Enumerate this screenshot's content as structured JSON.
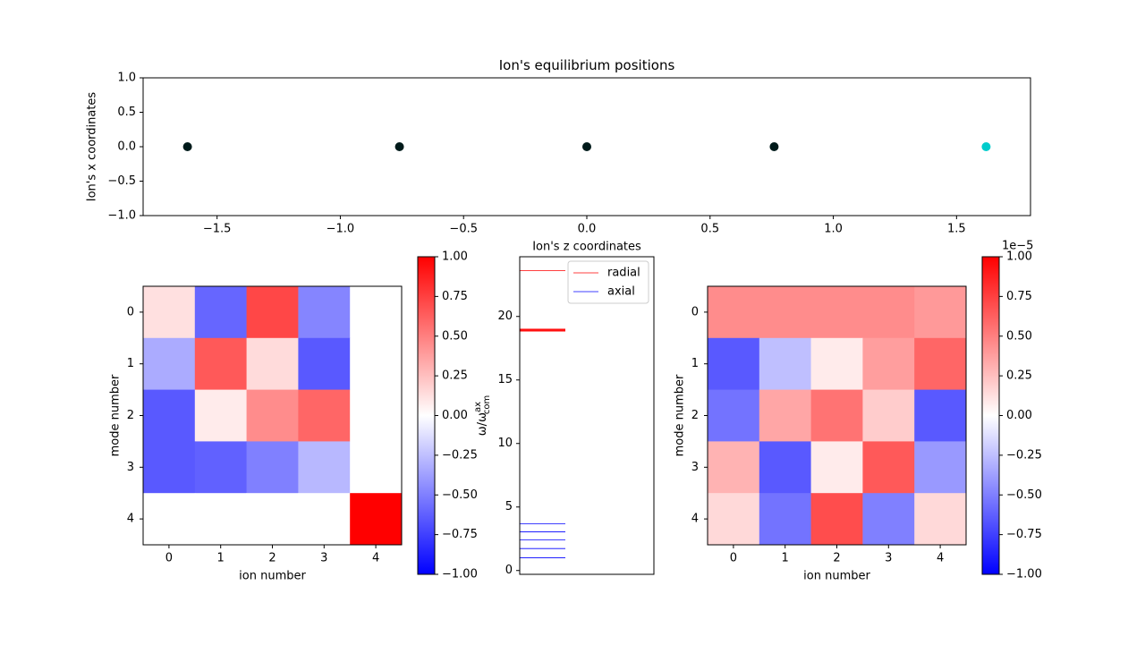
{
  "chart_data": [
    {
      "type": "scatter",
      "title": "Ion's equilibrium positions",
      "xlabel": "",
      "ylabel": "Ion's x coordinates",
      "xlim": [
        -1.8,
        1.8
      ],
      "ylim": [
        -1.0,
        1.0
      ],
      "xticks": [
        -1.5,
        -1.0,
        -0.5,
        0.0,
        0.5,
        1.0,
        1.5
      ],
      "xtick_labels": [
        "−1.5",
        "−1.0",
        "−0.5",
        "0.0",
        "0.5",
        "1.0",
        "1.5"
      ],
      "yticks": [
        1.0,
        0.5,
        0.0,
        -0.5,
        -1.0
      ],
      "ytick_labels": [
        "1.0",
        "0.5",
        "0.0",
        "−0.5",
        "−1.0"
      ],
      "points": [
        {
          "x": -1.62,
          "y": 0.0,
          "color": "#001a1a"
        },
        {
          "x": -0.76,
          "y": 0.0,
          "color": "#001a1a"
        },
        {
          "x": 0.0,
          "y": 0.0,
          "color": "#001a1a"
        },
        {
          "x": 0.76,
          "y": 0.0,
          "color": "#001a1a"
        },
        {
          "x": 1.62,
          "y": 0.0,
          "color": "#00cccc"
        }
      ],
      "grid": false
    },
    {
      "type": "heatmap",
      "xlabel": "ion number",
      "ylabel": "mode number",
      "x_ticks": [
        "0",
        "1",
        "2",
        "3",
        "4"
      ],
      "y_ticks": [
        "0",
        "1",
        "2",
        "3",
        "4"
      ],
      "colormap": "bwr",
      "vmin": -1.0,
      "vmax": 1.0,
      "values": [
        [
          0.12,
          -0.6,
          0.72,
          -0.48,
          0.0
        ],
        [
          -0.33,
          0.65,
          0.14,
          -0.65,
          0.0
        ],
        [
          -0.65,
          0.08,
          0.45,
          0.6,
          0.0
        ],
        [
          -0.65,
          -0.62,
          -0.5,
          -0.28,
          0.0
        ],
        [
          0.0,
          0.0,
          0.0,
          0.0,
          1.0
        ]
      ],
      "colorbar": {
        "ticks": [
          1.0,
          0.75,
          0.5,
          0.25,
          0.0,
          -0.25,
          -0.5,
          -0.75,
          -1.0
        ],
        "tick_labels": [
          "1.00",
          "0.75",
          "0.50",
          "0.25",
          "0.00",
          "−0.25",
          "−0.50",
          "−0.75",
          "−1.00"
        ],
        "offset_text": ""
      }
    },
    {
      "type": "line",
      "title": "Ion's z coordinates",
      "ylabel": "ω/ω",
      "ylabel_sup": "ax",
      "ylabel_sub": "com",
      "ylim": [
        -0.3,
        24.7
      ],
      "yticks": [
        0,
        5,
        10,
        15,
        20
      ],
      "ytick_labels": [
        "0",
        "5",
        "10",
        "15",
        "20"
      ],
      "legend_position": "top-right",
      "series": [
        {
          "name": "radial",
          "color": "#ff0000",
          "levels": [
            18.85,
            18.9,
            18.95,
            19.0,
            23.6
          ]
        },
        {
          "name": "axial",
          "color": "#0000ff",
          "levels": [
            1.0,
            1.73,
            2.4,
            3.05,
            3.68
          ]
        }
      ],
      "line_span": [
        0.0,
        0.34
      ]
    },
    {
      "type": "heatmap",
      "xlabel": "ion number",
      "ylabel": "mode number",
      "x_ticks": [
        "0",
        "1",
        "2",
        "3",
        "4"
      ],
      "y_ticks": [
        "0",
        "1",
        "2",
        "3",
        "4"
      ],
      "colormap": "bwr",
      "vmin": -1.0,
      "vmax": 1.0,
      "values": [
        [
          0.45,
          0.45,
          0.45,
          0.45,
          0.4
        ],
        [
          -0.65,
          -0.25,
          0.08,
          0.38,
          0.6
        ],
        [
          -0.55,
          0.35,
          0.55,
          0.2,
          -0.65
        ],
        [
          0.3,
          -0.65,
          0.08,
          0.65,
          -0.4
        ],
        [
          0.15,
          -0.55,
          0.7,
          -0.5,
          0.15
        ]
      ],
      "colorbar": {
        "ticks": [
          1.0,
          0.75,
          0.5,
          0.25,
          0.0,
          -0.25,
          -0.5,
          -0.75,
          -1.0
        ],
        "tick_labels": [
          "1.00",
          "0.75",
          "0.50",
          "0.25",
          "0.00",
          "−0.25",
          "−0.50",
          "−0.75",
          "−1.00"
        ],
        "offset_text": "1e−5"
      }
    }
  ]
}
